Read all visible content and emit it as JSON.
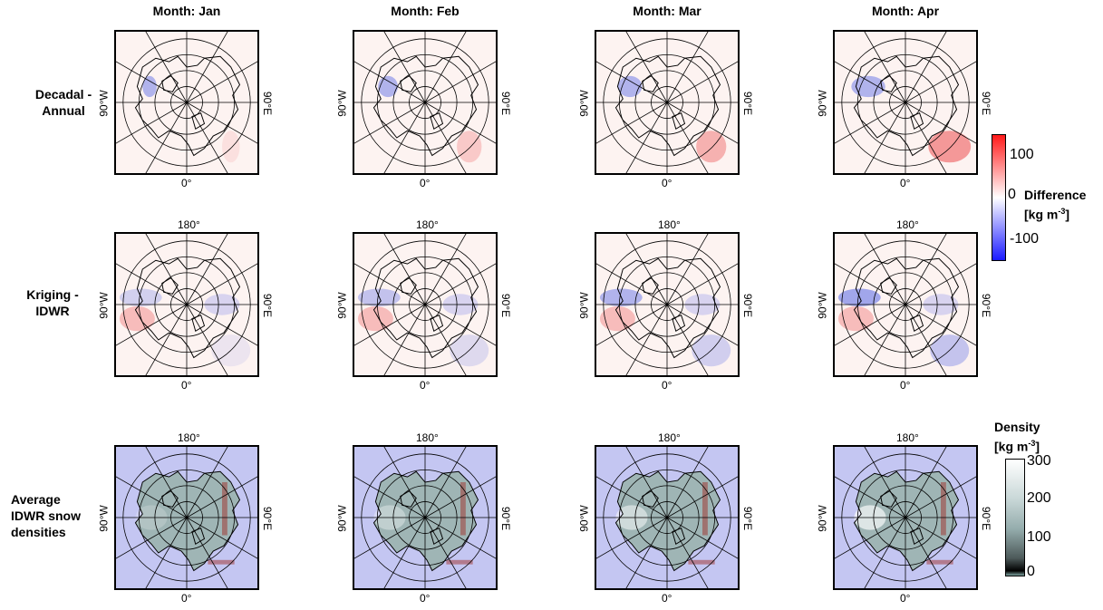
{
  "columns": [
    "Month: Jan",
    "Month: Feb",
    "Month: Mar",
    "Month: Apr"
  ],
  "rows": [
    {
      "label_line1": "Decadal -",
      "label_line2": "Annual",
      "label_line3": ""
    },
    {
      "label_line1": "Kriging -",
      "label_line2": "IDWR",
      "label_line3": ""
    },
    {
      "label_line1": "Average",
      "label_line2": "IDWR snow",
      "label_line3": "densities"
    }
  ],
  "map_labels": {
    "top": "180°",
    "bottom": "0°",
    "left": "90°W",
    "right": "90°E"
  },
  "difference_colorbar": {
    "title_line1": "Difference",
    "title_line2": "[kg m",
    "title_sup": "-3",
    "title_end": "]",
    "ticks": [
      "100",
      "0",
      "-100"
    ],
    "colors": {
      "high": "#ff1a1a",
      "mid": "#ffffff",
      "low": "#1a1aff"
    }
  },
  "density_colorbar": {
    "title_line1": "Density",
    "title_line2": "[kg m",
    "title_sup": "-3",
    "title_end": "]",
    "ticks": [
      "300",
      "200",
      "100",
      "0"
    ],
    "colors": {
      "high": "#ffffff",
      "mid": "#a9c3c3",
      "low": "#000000"
    }
  },
  "colors": {
    "ocean_density": "#c4c6f2",
    "land_density": "#9fb5b5",
    "diff_bg": "#fdf3f1",
    "coast": "#000000",
    "diff_blue": "#5566e6",
    "diff_red": "#f07a7a",
    "rust": "#a0302a"
  }
}
